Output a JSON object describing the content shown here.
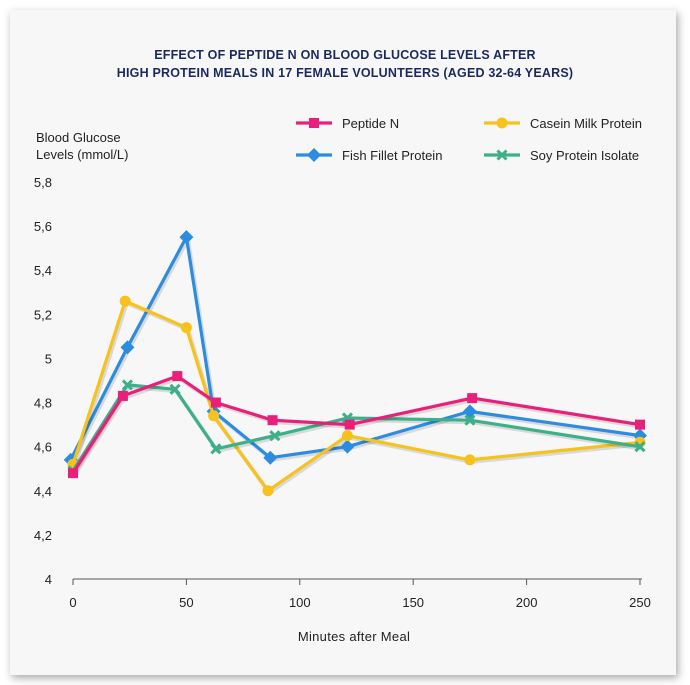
{
  "chart_data": {
    "type": "line",
    "title_lines": [
      "EFFECT OF PEPTIDE N ON BLOOD GLUCOSE LEVELS AFTER",
      "HIGH PROTEIN MEALS IN 17 FEMALE VOLUNTEERS (AGED 32-64 YEARS)"
    ],
    "ylabel_lines": [
      "Blood Glucose",
      "Levels (mmol/L)"
    ],
    "xlabel": "Minutes after Meal",
    "xlim": [
      0,
      250
    ],
    "ylim": [
      4,
      5.8
    ],
    "x_ticks": [
      "0",
      "50",
      "100",
      "150",
      "200",
      "250"
    ],
    "x_tick_values": [
      0,
      50,
      100,
      150,
      200,
      250
    ],
    "y_ticks": [
      "4",
      "4,2",
      "4,4",
      "4,6",
      "4,8",
      "5",
      "5,2",
      "5,4",
      "5,6",
      "5,8"
    ],
    "y_tick_values": [
      4,
      4.2,
      4.4,
      4.6,
      4.8,
      5,
      5.2,
      5.4,
      5.6,
      5.8
    ],
    "grid": false,
    "legend": "top-right",
    "series": [
      {
        "name": "Peptide N",
        "color": "#e8207a",
        "marker": "square",
        "points": [
          [
            0,
            4.48
          ],
          [
            22,
            4.83
          ],
          [
            46,
            4.92
          ],
          [
            63,
            4.8
          ],
          [
            88,
            4.72
          ],
          [
            122,
            4.7
          ],
          [
            176,
            4.82
          ],
          [
            250,
            4.7
          ]
        ]
      },
      {
        "name": "Casein Milk Protein",
        "color": "#f7c21b",
        "marker": "circle",
        "points": [
          [
            0,
            4.52
          ],
          [
            23,
            5.26
          ],
          [
            50,
            5.14
          ],
          [
            62,
            4.74
          ],
          [
            86,
            4.4
          ],
          [
            121,
            4.65
          ],
          [
            175,
            4.54
          ],
          [
            250,
            4.62
          ]
        ]
      },
      {
        "name": "Fish Fillet Protein",
        "color": "#2b8ce0",
        "marker": "diamond",
        "points": [
          [
            -1,
            4.54
          ],
          [
            24,
            5.05
          ],
          [
            50,
            5.55
          ],
          [
            62,
            4.76
          ],
          [
            87,
            4.55
          ],
          [
            121,
            4.6
          ],
          [
            175,
            4.76
          ],
          [
            250,
            4.65
          ]
        ]
      },
      {
        "name": "Soy Protein Isolate",
        "color": "#3bb08a",
        "marker": "x",
        "points": [
          [
            0,
            4.49
          ],
          [
            24,
            4.88
          ],
          [
            45,
            4.86
          ],
          [
            63,
            4.59
          ],
          [
            89,
            4.65
          ],
          [
            121,
            4.73
          ],
          [
            175,
            4.72
          ],
          [
            250,
            4.6
          ]
        ]
      }
    ]
  }
}
